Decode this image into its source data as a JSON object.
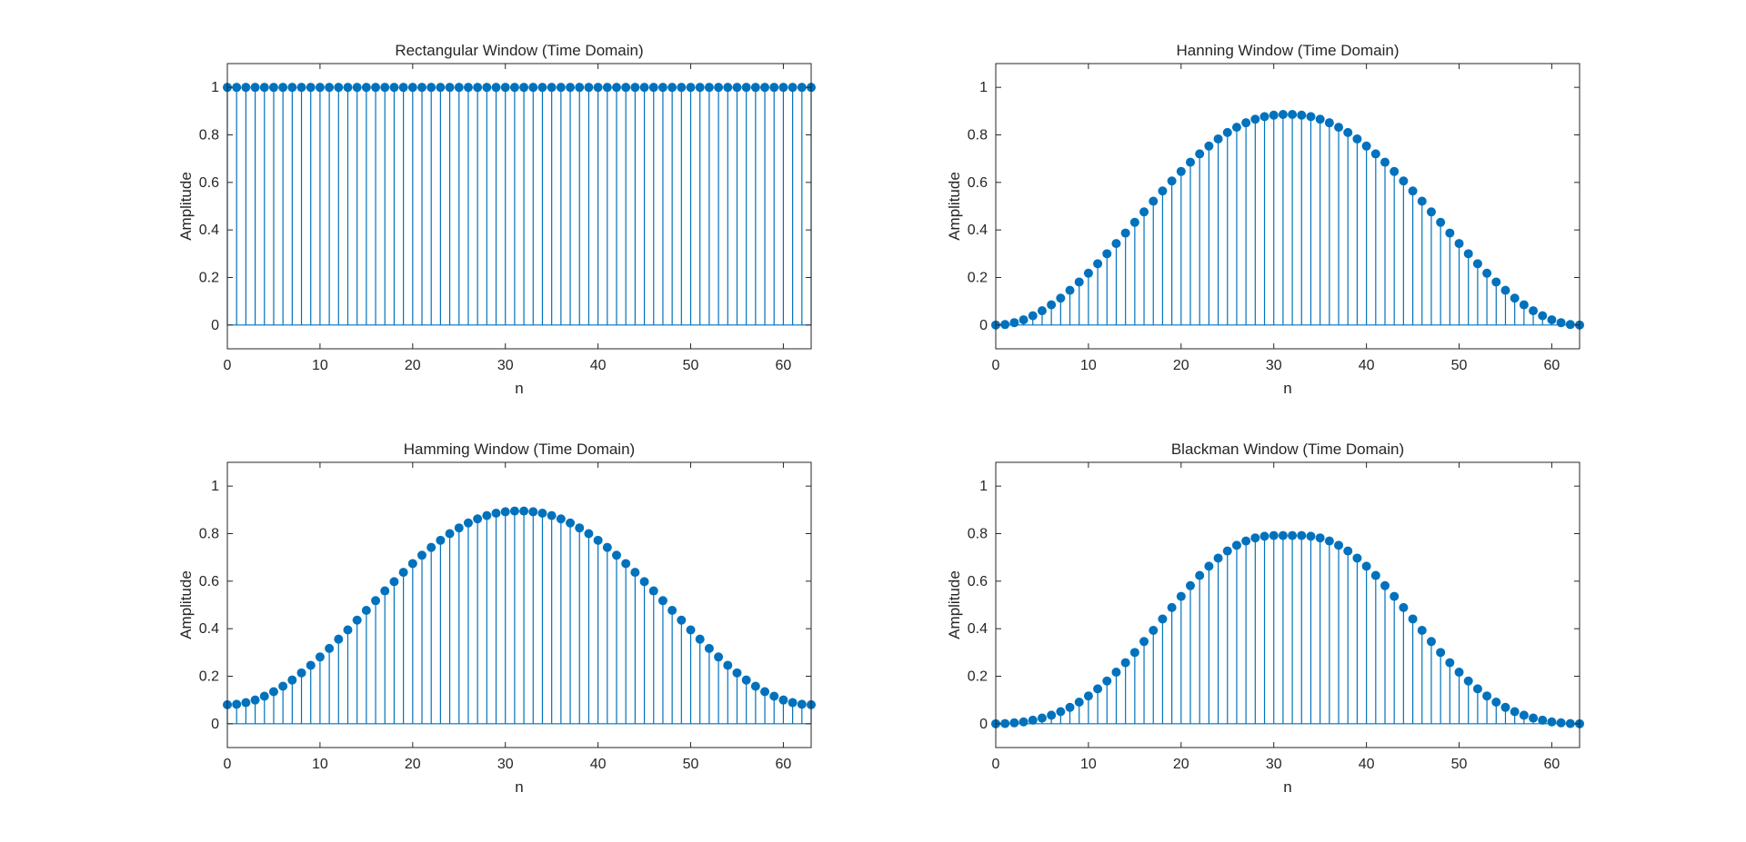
{
  "figure": {
    "background": "#ffffff",
    "stem_color": "#0072bd",
    "axis_color": "#262626"
  },
  "chart_data": [
    {
      "type": "stem",
      "title": "Rectangular Window (Time Domain)",
      "xlabel": "n",
      "ylabel": "Amplitude",
      "xlim": [
        0,
        63
      ],
      "ylim": [
        -0.1,
        1.1
      ],
      "xticks": [
        0,
        10,
        20,
        30,
        40,
        50,
        60
      ],
      "xtick_labels": [
        "0",
        "10",
        "20",
        "30",
        "40",
        "50",
        "60"
      ],
      "yticks": [
        0,
        0.2,
        0.4,
        0.6,
        0.8,
        1
      ],
      "ytick_labels": [
        "0",
        "0.2",
        "0.4",
        "0.6",
        "0.8",
        "1"
      ],
      "grid": false,
      "window": "rectangular",
      "N": 64,
      "x": [
        0,
        1,
        2,
        3,
        4,
        5,
        6,
        7,
        8,
        9,
        10,
        11,
        12,
        13,
        14,
        15,
        16,
        17,
        18,
        19,
        20,
        21,
        22,
        23,
        24,
        25,
        26,
        27,
        28,
        29,
        30,
        31,
        32,
        33,
        34,
        35,
        36,
        37,
        38,
        39,
        40,
        41,
        42,
        43,
        44,
        45,
        46,
        47,
        48,
        49,
        50,
        51,
        52,
        53,
        54,
        55,
        56,
        57,
        58,
        59,
        60,
        61,
        62,
        63
      ],
      "y": [
        1,
        1,
        1,
        1,
        1,
        1,
        1,
        1,
        1,
        1,
        1,
        1,
        1,
        1,
        1,
        1,
        1,
        1,
        1,
        1,
        1,
        1,
        1,
        1,
        1,
        1,
        1,
        1,
        1,
        1,
        1,
        1,
        1,
        1,
        1,
        1,
        1,
        1,
        1,
        1,
        1,
        1,
        1,
        1,
        1,
        1,
        1,
        1,
        1,
        1,
        1,
        1,
        1,
        1,
        1,
        1,
        1,
        1,
        1,
        1,
        1,
        1,
        1,
        1
      ]
    },
    {
      "type": "stem",
      "title": "Hanning Window (Time Domain)",
      "xlabel": "n",
      "ylabel": "Amplitude",
      "xlim": [
        0,
        63
      ],
      "ylim": [
        -0.1,
        1.1
      ],
      "xticks": [
        0,
        10,
        20,
        30,
        40,
        50,
        60
      ],
      "xtick_labels": [
        "0",
        "10",
        "20",
        "30",
        "40",
        "50",
        "60"
      ],
      "yticks": [
        0,
        0.2,
        0.4,
        0.6,
        0.8,
        1
      ],
      "ytick_labels": [
        "0",
        "0.2",
        "0.4",
        "0.6",
        "0.8",
        "1"
      ],
      "grid": false,
      "window": "hanning",
      "N": 64,
      "x": [
        0,
        1,
        2,
        3,
        4,
        5,
        6,
        7,
        8,
        9,
        10,
        11,
        12,
        13,
        14,
        15,
        16,
        17,
        18,
        19,
        20,
        21,
        22,
        23,
        24,
        25,
        26,
        27,
        28,
        29,
        30,
        31,
        32,
        33,
        34,
        35,
        36,
        37,
        38,
        39,
        40,
        41,
        42,
        43,
        44,
        45,
        46,
        47,
        48,
        49,
        50,
        51,
        52,
        53,
        54,
        55,
        56,
        57,
        58,
        59,
        60,
        61,
        62,
        63
      ],
      "y": [
        0,
        0.002,
        0.01,
        0.022,
        0.039,
        0.06,
        0.085,
        0.113,
        0.146,
        0.181,
        0.218,
        0.258,
        0.3,
        0.343,
        0.387,
        0.432,
        0.476,
        0.521,
        0.564,
        0.606,
        0.646,
        0.685,
        0.72,
        0.753,
        0.783,
        0.81,
        0.832,
        0.851,
        0.866,
        0.877,
        0.883,
        0.886,
        0.886,
        0.883,
        0.877,
        0.866,
        0.851,
        0.832,
        0.81,
        0.783,
        0.753,
        0.72,
        0.685,
        0.646,
        0.606,
        0.564,
        0.521,
        0.476,
        0.432,
        0.387,
        0.343,
        0.3,
        0.258,
        0.218,
        0.181,
        0.146,
        0.113,
        0.085,
        0.06,
        0.039,
        0.022,
        0.01,
        0.002,
        0
      ]
    },
    {
      "type": "stem",
      "title": "Hamming Window (Time Domain)",
      "xlabel": "n",
      "ylabel": "Amplitude",
      "xlim": [
        0,
        63
      ],
      "ylim": [
        -0.1,
        1.1
      ],
      "xticks": [
        0,
        10,
        20,
        30,
        40,
        50,
        60
      ],
      "xtick_labels": [
        "0",
        "10",
        "20",
        "30",
        "40",
        "50",
        "60"
      ],
      "yticks": [
        0,
        0.2,
        0.4,
        0.6,
        0.8,
        1
      ],
      "ytick_labels": [
        "0",
        "0.2",
        "0.4",
        "0.6",
        "0.8",
        "1"
      ],
      "grid": false,
      "window": "hamming",
      "N": 64,
      "x": [
        0,
        1,
        2,
        3,
        4,
        5,
        6,
        7,
        8,
        9,
        10,
        11,
        12,
        13,
        14,
        15,
        16,
        17,
        18,
        19,
        20,
        21,
        22,
        23,
        24,
        25,
        26,
        27,
        28,
        29,
        30,
        31,
        32,
        33,
        34,
        35,
        36,
        37,
        38,
        39,
        40,
        41,
        42,
        43,
        44,
        45,
        46,
        47,
        48,
        49,
        50,
        51,
        52,
        53,
        54,
        55,
        56,
        57,
        58,
        59,
        60,
        61,
        62,
        63
      ],
      "y": [
        0.08,
        0.082,
        0.089,
        0.1,
        0.116,
        0.135,
        0.158,
        0.184,
        0.214,
        0.246,
        0.281,
        0.317,
        0.356,
        0.395,
        0.436,
        0.477,
        0.518,
        0.559,
        0.598,
        0.637,
        0.674,
        0.709,
        0.742,
        0.772,
        0.8,
        0.824,
        0.845,
        0.862,
        0.876,
        0.886,
        0.892,
        0.895,
        0.895,
        0.892,
        0.886,
        0.876,
        0.862,
        0.845,
        0.824,
        0.8,
        0.772,
        0.742,
        0.709,
        0.674,
        0.637,
        0.598,
        0.559,
        0.518,
        0.477,
        0.436,
        0.395,
        0.356,
        0.317,
        0.281,
        0.246,
        0.214,
        0.184,
        0.158,
        0.135,
        0.116,
        0.1,
        0.089,
        0.082,
        0.08
      ]
    },
    {
      "type": "stem",
      "title": "Blackman Window (Time Domain)",
      "xlabel": "n",
      "ylabel": "Amplitude",
      "xlim": [
        0,
        63
      ],
      "ylim": [
        -0.1,
        1.1
      ],
      "xticks": [
        0,
        10,
        20,
        30,
        40,
        50,
        60
      ],
      "xtick_labels": [
        "0",
        "10",
        "20",
        "30",
        "40",
        "50",
        "60"
      ],
      "yticks": [
        0,
        0.2,
        0.4,
        0.6,
        0.8,
        1
      ],
      "ytick_labels": [
        "0",
        "0.2",
        "0.4",
        "0.6",
        "0.8",
        "1"
      ],
      "grid": false,
      "window": "blackman",
      "N": 64,
      "x": [
        0,
        1,
        2,
        3,
        4,
        5,
        6,
        7,
        8,
        9,
        10,
        11,
        12,
        13,
        14,
        15,
        16,
        17,
        18,
        19,
        20,
        21,
        22,
        23,
        24,
        25,
        26,
        27,
        28,
        29,
        30,
        31,
        32,
        33,
        34,
        35,
        36,
        37,
        38,
        39,
        40,
        41,
        42,
        43,
        44,
        45,
        46,
        47,
        48,
        49,
        50,
        51,
        52,
        53,
        54,
        55,
        56,
        57,
        58,
        59,
        60,
        61,
        62,
        63
      ],
      "y": [
        0,
        0.001,
        0.004,
        0.008,
        0.015,
        0.024,
        0.036,
        0.051,
        0.069,
        0.091,
        0.117,
        0.147,
        0.18,
        0.217,
        0.257,
        0.3,
        0.346,
        0.393,
        0.441,
        0.489,
        0.536,
        0.581,
        0.624,
        0.663,
        0.697,
        0.727,
        0.751,
        0.769,
        0.782,
        0.789,
        0.792,
        0.792,
        0.792,
        0.792,
        0.789,
        0.782,
        0.769,
        0.751,
        0.727,
        0.697,
        0.663,
        0.624,
        0.581,
        0.536,
        0.489,
        0.441,
        0.393,
        0.346,
        0.3,
        0.257,
        0.217,
        0.18,
        0.147,
        0.117,
        0.091,
        0.069,
        0.051,
        0.036,
        0.024,
        0.015,
        0.008,
        0.004,
        0.001,
        0
      ]
    }
  ]
}
